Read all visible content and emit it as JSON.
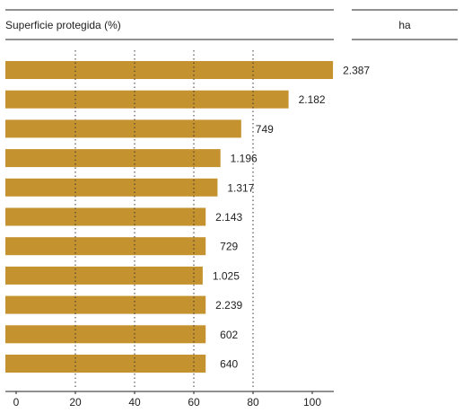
{
  "chart_data": {
    "type": "bar",
    "orientation": "horizontal",
    "header_left": "Superficie protegida (%)",
    "header_right": "ha",
    "values": [
      107,
      92,
      76,
      69,
      68,
      64,
      64,
      63,
      64,
      64,
      64
    ],
    "bar_labels": [
      "2.387",
      "2.182",
      "749",
      "1.196",
      "1.317",
      "2.143",
      "729",
      "1.025",
      "2.239",
      "602",
      "640"
    ],
    "xlim": [
      0,
      110
    ],
    "x_ticks": [
      0,
      20,
      40,
      60,
      80,
      100
    ],
    "x_tick_labels": [
      "0",
      "20",
      "40",
      "60",
      "80",
      "100"
    ],
    "grid": "vertical dotted",
    "colors": {
      "bar": "#c4922e",
      "axis": "#222222",
      "grid": "#333333"
    }
  }
}
